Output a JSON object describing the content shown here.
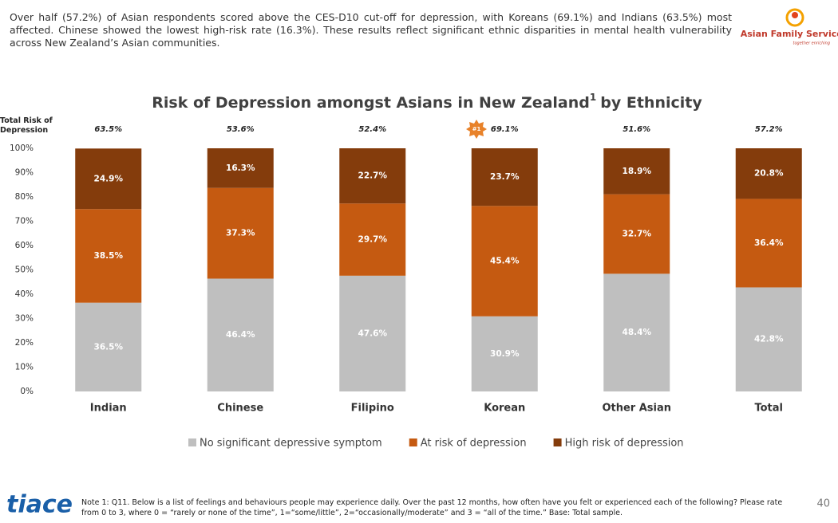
{
  "intro": "Over half (57.2%) of Asian respondents scored above the CES-D10 cut-off for depression, with Koreans (69.1%) and Indians (63.5%) most affected. Chinese showed the lowest high-risk rate (16.3%). These results reflect significant ethnic disparities in mental health vulnerability across New Zealand’s Asian communities.",
  "logo": {
    "name": "Asian Family Services",
    "tagline": "together enriching"
  },
  "chart_data": {
    "type": "stacked_bar",
    "title": "Risk of Depression amongst Asians in New Zealand",
    "title_sup": "1",
    "title_suffix": "by Ethnicity",
    "totals_title": "Total Risk of Depression",
    "categories": [
      "Indian",
      "Chinese",
      "Filipino",
      "Korean",
      "Other Asian",
      "Total"
    ],
    "totals": {
      "values": [
        63.5,
        53.6,
        52.4,
        69.1,
        51.6,
        57.2
      ],
      "value_labels": [
        "63.5%",
        "53.6%",
        "52.4%",
        "69.1%",
        "51.6%",
        "57.2%"
      ]
    },
    "annotation": "#1",
    "series": [
      {
        "name": "No significant depressive symptom",
        "color": "#bfbfbf",
        "values": [
          36.5,
          46.4,
          47.6,
          30.9,
          48.4,
          42.8
        ],
        "value_labels": [
          "36.5%",
          "46.4%",
          "47.6%",
          "30.9%",
          "48.4%",
          "42.8%"
        ]
      },
      {
        "name": "At risk of depression",
        "color": "#c55a11",
        "values": [
          38.5,
          37.3,
          29.7,
          45.4,
          32.7,
          36.4
        ],
        "value_labels": [
          "38.5%",
          "37.3%",
          "29.7%",
          "45.4%",
          "32.7%",
          "36.4%"
        ]
      },
      {
        "name": "High risk of depression",
        "color": "#843c0c",
        "values": [
          24.9,
          16.3,
          22.7,
          23.7,
          18.9,
          20.8
        ],
        "value_labels": [
          "24.9%",
          "16.3%",
          "22.7%",
          "23.7%",
          "18.9%",
          "20.8%"
        ]
      }
    ],
    "ylim": [
      0,
      100
    ],
    "yticks": [
      {
        "value": 0,
        "label": "0%"
      },
      {
        "value": 10,
        "label": "10%"
      },
      {
        "value": 20,
        "label": "20%"
      },
      {
        "value": 30,
        "label": "30%"
      },
      {
        "value": 40,
        "label": "40%"
      },
      {
        "value": 50,
        "label": "50%"
      },
      {
        "value": 60,
        "label": "60%"
      },
      {
        "value": 70,
        "label": "70%"
      },
      {
        "value": 80,
        "label": "80%"
      },
      {
        "value": 90,
        "label": "90%"
      },
      {
        "value": 100,
        "label": "100%"
      }
    ]
  },
  "footer": {
    "brand": "tiace",
    "note": "Note 1: Q11. Below is a list of feelings and behaviours people may experience daily. Over the past 12 months, how often have you felt or experienced each of the following? Please rate from 0 to 3, where 0 = “rarely or none of the time”, 1=“some/little”, 2=“occasionally/moderate” and 3 = “all of the time.” Base: Total sample.",
    "page": "40"
  }
}
